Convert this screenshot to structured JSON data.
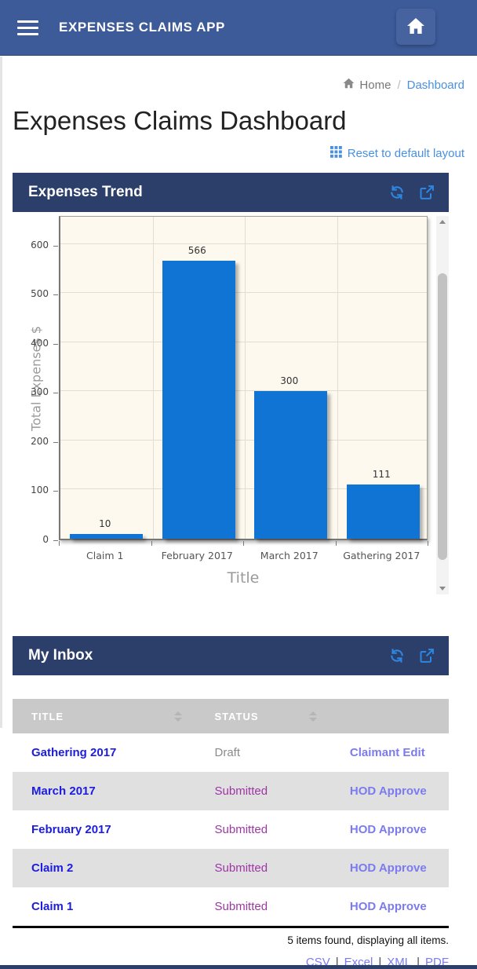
{
  "navbar": {
    "title": "EXPENSES CLAIMS APP"
  },
  "breadcrumb": {
    "home": "Home",
    "separator": "/",
    "current": "Dashboard"
  },
  "page": {
    "title": "Expenses Claims Dashboard",
    "reset_label": "Reset to default layout"
  },
  "panels": {
    "trend": {
      "title": "Expenses Trend"
    },
    "inbox": {
      "title": "My Inbox"
    }
  },
  "icons": {
    "menu": "hamburger",
    "home": "house",
    "reset": "grid-3x3",
    "refresh": "sync-arrows",
    "popout": "external-link",
    "sort": "up-down-carets"
  },
  "chart_data": {
    "type": "bar",
    "title": "Expenses Trend",
    "categories": [
      "Claim 1",
      "February 2017",
      "March 2017",
      "Gathering 2017"
    ],
    "values": [
      10,
      566,
      300,
      111
    ],
    "xlabel": "Title",
    "ylabel": "Total Expenses $",
    "ylim": [
      0,
      660
    ],
    "yticks": [
      0,
      100,
      200,
      300,
      400,
      500,
      600
    ],
    "grid": true,
    "legend": "none",
    "bar_color": "#0f74d4",
    "plot_background": "#fdf9ee"
  },
  "inbox_table": {
    "columns": [
      "TITLE",
      "STATUS",
      ""
    ],
    "rows": [
      {
        "title": "Gathering 2017",
        "status": "Draft",
        "action": "Claimant Edit"
      },
      {
        "title": "March 2017",
        "status": "Submitted",
        "action": "HOD Approve"
      },
      {
        "title": "February 2017",
        "status": "Submitted",
        "action": "HOD Approve"
      },
      {
        "title": "Claim 2",
        "status": "Submitted",
        "action": "HOD Approve"
      },
      {
        "title": "Claim 1",
        "status": "Submitted",
        "action": "HOD Approve"
      }
    ],
    "summary": "5 items found, displaying all items.",
    "export_links": [
      "CSV",
      "Excel",
      "XML",
      "PDF"
    ],
    "export_separator": "|"
  },
  "colors": {
    "navbar": "#3d5a99",
    "panel_header": "#2b3f6a",
    "accent_link": "#4a90e2",
    "icon_blue": "#2d87e2",
    "title_link": "#1c1ce0",
    "action_link": "#7b7bef",
    "status": {
      "draft": "#8a8a8a",
      "submitted": "#9d36a4"
    },
    "table_header_bg": "#c9c9c9",
    "zebra_row_bg": "#e0e0e0"
  }
}
